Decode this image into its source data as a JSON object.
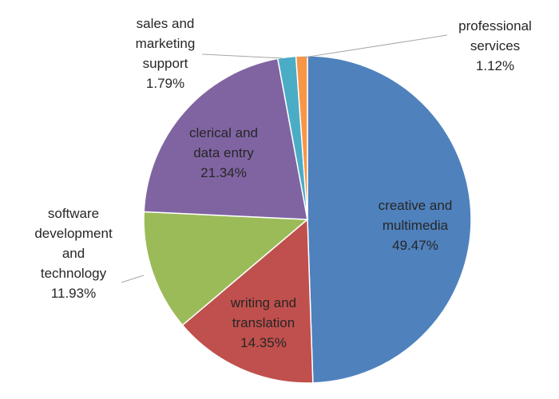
{
  "chart_data": {
    "type": "pie",
    "title": "",
    "start_angle_deg": 0,
    "direction": "clockwise",
    "legend": "none",
    "slices": [
      {
        "key": "creative",
        "label_lines": [
          "creative and",
          "multimedia"
        ],
        "value_label": "49.47%",
        "value": 49.47,
        "color": "#4F81BD"
      },
      {
        "key": "writing",
        "label_lines": [
          "writing and",
          "translation"
        ],
        "value_label": "14.35%",
        "value": 14.35,
        "color": "#C0504D"
      },
      {
        "key": "software",
        "label_lines": [
          "software",
          "development",
          "and",
          "technology"
        ],
        "value_label": "11.93%",
        "value": 11.93,
        "color": "#9BBB59"
      },
      {
        "key": "clerical",
        "label_lines": [
          "clerical and",
          "data entry"
        ],
        "value_label": "21.34%",
        "value": 21.34,
        "color": "#8064A2"
      },
      {
        "key": "sales",
        "label_lines": [
          "sales and",
          "marketing",
          "support"
        ],
        "value_label": "1.79%",
        "value": 1.79,
        "color": "#4BACC6"
      },
      {
        "key": "professional",
        "label_lines": [
          "professional",
          "services"
        ],
        "value_label": "1.12%",
        "value": 1.12,
        "color": "#F79646"
      }
    ]
  }
}
